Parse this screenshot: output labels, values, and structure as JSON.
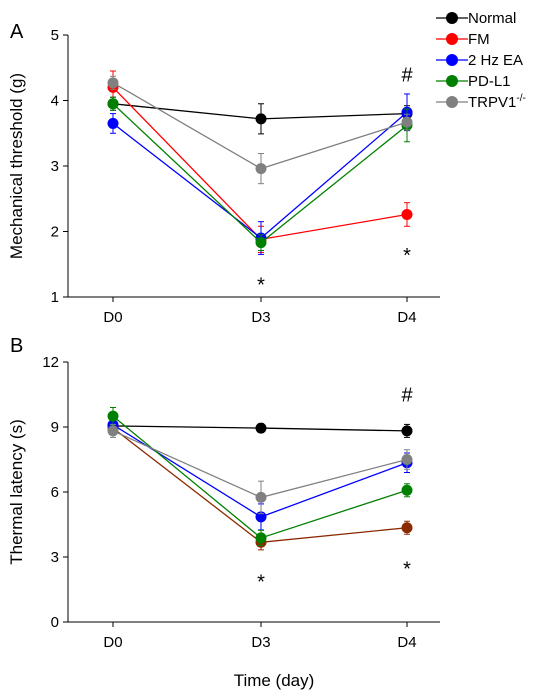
{
  "chart_data": [
    {
      "type": "line",
      "panel": "A",
      "ylabel": "Mechanical threshold (g)",
      "xlabel": "",
      "categories": [
        "D0",
        "D3",
        "D4"
      ],
      "ylim": [
        1,
        5
      ],
      "yticks": [
        1,
        2,
        3,
        4,
        5
      ],
      "grid": false,
      "series": [
        {
          "name": "Normal",
          "color": "#000000",
          "values": [
            3.95,
            3.72,
            3.8
          ],
          "errors": [
            0.1,
            0.23,
            0.12
          ]
        },
        {
          "name": "FM",
          "color": "#ff0000",
          "values": [
            4.2,
            1.88,
            2.26
          ],
          "errors": [
            0.25,
            0.2,
            0.18
          ]
        },
        {
          "name": "2 Hz EA",
          "color": "#0000ff",
          "values": [
            3.65,
            1.9,
            3.82
          ],
          "errors": [
            0.15,
            0.25,
            0.28
          ]
        },
        {
          "name": "PD-L1",
          "color": "#008000",
          "values": [
            3.95,
            1.83,
            3.62
          ],
          "errors": [
            0.1,
            0.12,
            0.25
          ]
        },
        {
          "name": "TRPV1",
          "color": "#808080",
          "values": [
            4.27,
            2.96,
            3.67
          ],
          "errors": [
            0.1,
            0.23,
            0.12
          ]
        }
      ],
      "annotations": [
        {
          "text": "*",
          "x": "D3",
          "y": 1.3
        },
        {
          "text": "*",
          "x": "D4",
          "y": 1.75
        },
        {
          "text": "#",
          "x": "D4",
          "y": 4.4
        }
      ]
    },
    {
      "type": "line",
      "panel": "B",
      "ylabel": "Thermal latency (s)",
      "xlabel": "Time (day)",
      "categories": [
        "D0",
        "D3",
        "D4"
      ],
      "ylim": [
        0,
        12
      ],
      "yticks": [
        0,
        3,
        6,
        9,
        12
      ],
      "grid": false,
      "series": [
        {
          "name": "Normal",
          "color": "#000000",
          "values": [
            9.05,
            8.95,
            8.82
          ],
          "errors": [
            0.3,
            0.2,
            0.3
          ]
        },
        {
          "name": "FM",
          "color": "#8b2a00",
          "values": [
            8.95,
            3.68,
            4.35
          ],
          "errors": [
            0.3,
            0.35,
            0.3
          ]
        },
        {
          "name": "2 Hz EA",
          "color": "#0000ff",
          "values": [
            9.1,
            4.85,
            7.35
          ],
          "errors": [
            0.4,
            0.6,
            0.45
          ]
        },
        {
          "name": "PD-L1",
          "color": "#008000",
          "values": [
            9.5,
            3.88,
            6.08
          ],
          "errors": [
            0.4,
            0.35,
            0.3
          ]
        },
        {
          "name": "TRPV1",
          "color": "#808080",
          "values": [
            8.82,
            5.75,
            7.5
          ],
          "errors": [
            0.3,
            0.75,
            0.45
          ]
        }
      ],
      "annotations": [
        {
          "text": "*",
          "x": "D3",
          "y": 2.2
        },
        {
          "text": "*",
          "x": "D4",
          "y": 2.8
        },
        {
          "text": "#",
          "x": "D4",
          "y": 10.5
        }
      ]
    }
  ],
  "legend": {
    "position": "top-right",
    "items": [
      {
        "label": "Normal",
        "superscript": "",
        "color": "#000000"
      },
      {
        "label": "FM",
        "superscript": "",
        "color": "#ff0000"
      },
      {
        "label": "2 Hz EA",
        "superscript": "",
        "color": "#0000ff"
      },
      {
        "label": "PD-L1",
        "superscript": "",
        "color": "#008000"
      },
      {
        "label": "TRPV1",
        "superscript": "-/-",
        "color": "#808080"
      }
    ]
  }
}
